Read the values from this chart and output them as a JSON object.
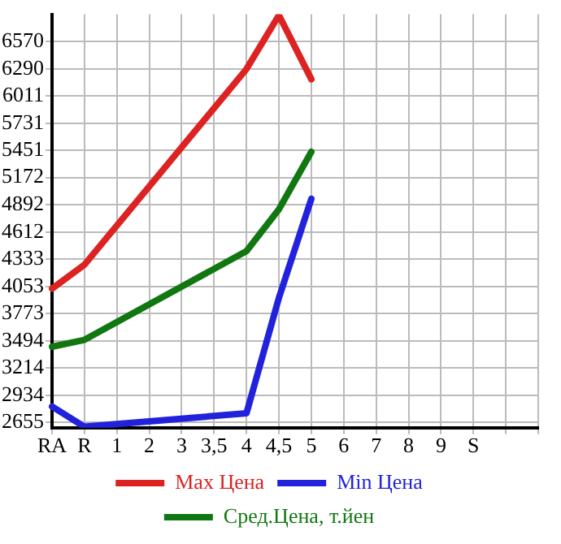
{
  "chart_data": {
    "type": "line",
    "categories": [
      "RA",
      "R",
      "1",
      "2",
      "3",
      "3,5",
      "4",
      "4,5",
      "5",
      "6",
      "7",
      "8",
      "9",
      "S",
      null,
      null
    ],
    "series": [
      {
        "name": "Max Цена",
        "color": "#dd2222",
        "values": [
          4030,
          4276,
          null,
          null,
          null,
          null,
          6288,
          6840,
          6182,
          null,
          null,
          null,
          null,
          null,
          null,
          null
        ]
      },
      {
        "name": "Min Цена",
        "color": "#2222dd",
        "values": [
          2818,
          2610,
          null,
          null,
          null,
          null,
          2749,
          3936,
          4953,
          null,
          null,
          null,
          null,
          null,
          null,
          null
        ]
      },
      {
        "name": "Сред.Цена, т.йен",
        "color": "#117711",
        "values": [
          3433,
          3503,
          null,
          null,
          null,
          null,
          4416,
          4845,
          5436,
          null,
          null,
          null,
          null,
          null,
          null,
          null
        ]
      }
    ],
    "ylim": [
      2600,
      6850
    ],
    "yticks": [
      2655,
      2934,
      3214,
      3494,
      3773,
      4053,
      4333,
      4612,
      4892,
      5172,
      5451,
      5731,
      6011,
      6290,
      6570
    ],
    "grid": true,
    "legend": "bottom",
    "marker": "none",
    "line_style": "solid"
  }
}
